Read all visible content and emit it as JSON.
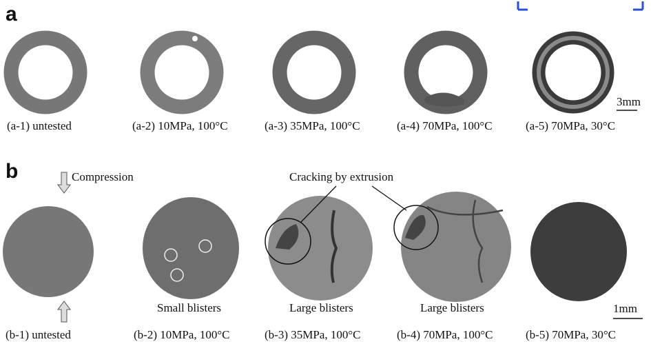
{
  "panel_a": {
    "label": "a",
    "captions": [
      "(a-1) untested",
      "(a-2) 10MPa, 100°C",
      "(a-3) 35MPa, 100°C",
      "(a-4) 70MPa, 100°C",
      "(a-5) 70MPa, 30°C"
    ],
    "scale": "3mm"
  },
  "panel_b": {
    "label": "b",
    "captions": [
      "(b-1) untested",
      "(b-2) 10MPa, 100°C",
      "(b-3) 35MPa, 100°C",
      "(b-4) 70MPa, 100°C",
      "(b-5) 70MPa, 30°C"
    ],
    "notes": [
      "Small blisters",
      "Large blisters",
      "Large blisters"
    ],
    "compression": "Compression",
    "cracking": "Cracking by extrusion",
    "scale": "1mm"
  }
}
